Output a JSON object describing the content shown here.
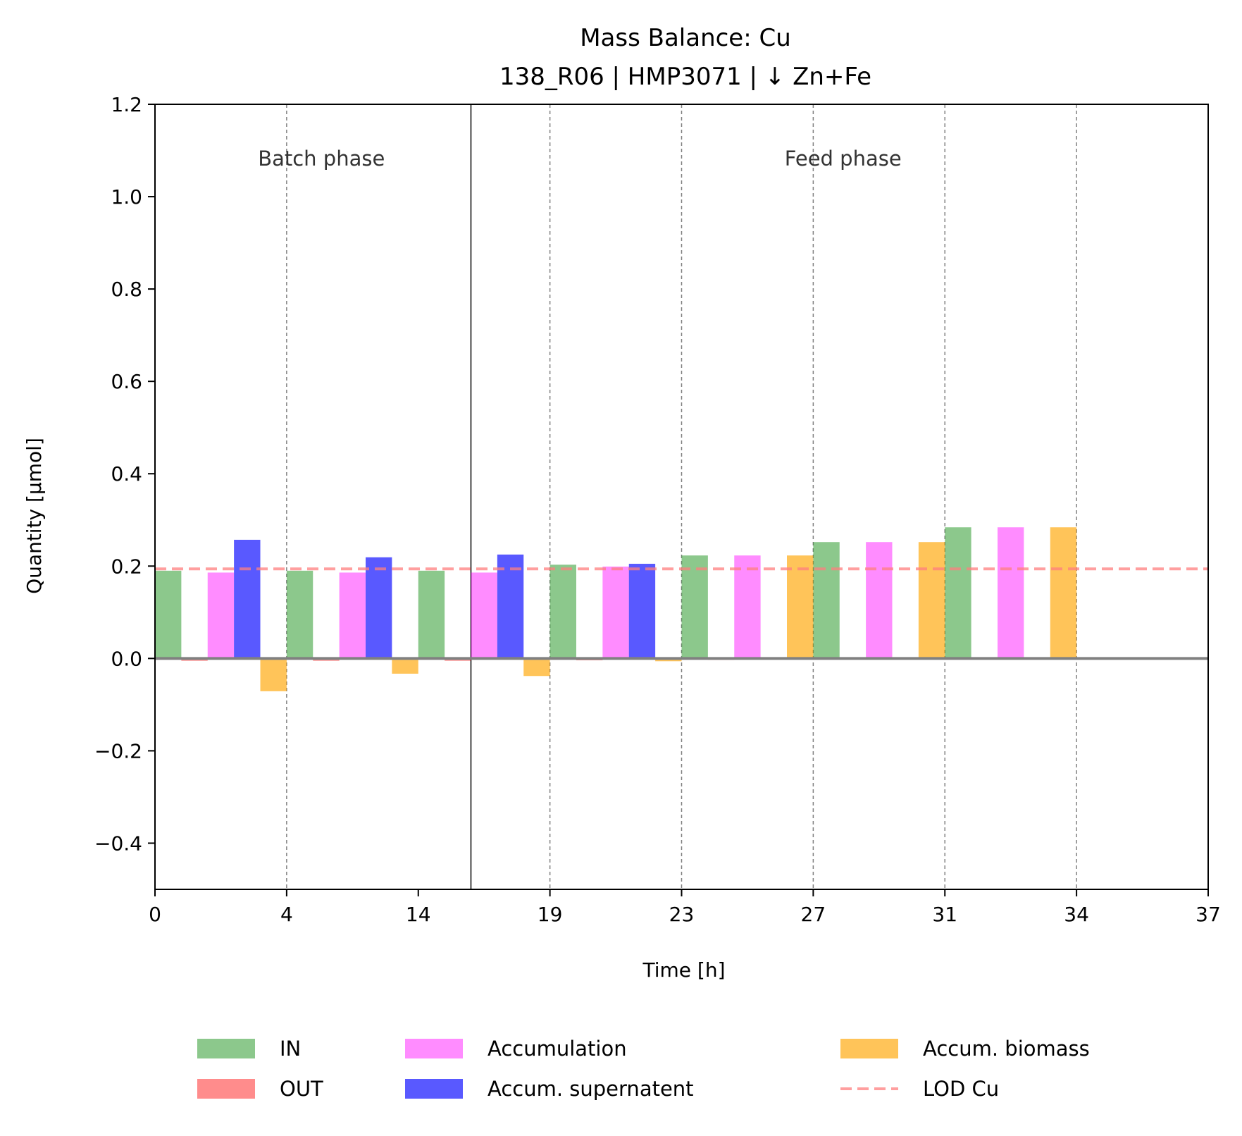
{
  "chart_data": {
    "type": "bar",
    "title": "Mass Balance: Cu",
    "subtitle": "138_R06  |  HMP3071  |  ↓ Zn+Fe",
    "xlabel": "Time [h]",
    "ylabel": "Quantity [µmol]",
    "ylim": [
      -0.5,
      1.2
    ],
    "yticks": [
      -0.4,
      -0.2,
      0.0,
      0.2,
      0.4,
      0.6,
      0.8,
      1.0,
      1.2
    ],
    "ytick_labels": [
      "−0.4",
      "−0.2",
      "0.0",
      "0.2",
      "0.4",
      "0.6",
      "0.8",
      "1.0",
      "1.2"
    ],
    "xtick_labels": [
      "0",
      "4",
      "14",
      "19",
      "23",
      "27",
      "31",
      "34",
      "37"
    ],
    "grid": "vertical dashed lines at interval boundaries",
    "phase_separator_after_interval": 2,
    "phase_labels": [
      "Batch phase",
      "Feed phase"
    ],
    "zero_line": true,
    "lod": {
      "name": "LOD Cu",
      "value": 0.194,
      "color": "#ff7f7f",
      "style": "dashed"
    },
    "legend_position": "bottom-center",
    "legend_order": [
      "IN",
      "OUT",
      "Accumulation",
      "Accum. supernatent",
      "Accum. biomass",
      "LOD Cu"
    ],
    "intervals": [
      "0–4",
      "4–14",
      "14–19",
      "19–23",
      "23–27",
      "27–31",
      "31–34",
      "34–37"
    ],
    "series": [
      {
        "name": "IN",
        "color": "#2e9a2e",
        "opacity": 0.55,
        "offset": 0,
        "values": [
          0.19,
          0.19,
          0.19,
          0.203,
          0.223,
          0.252,
          0.284,
          0
        ]
      },
      {
        "name": "OUT",
        "color": "#ff0000",
        "opacity": 0.45,
        "offset": 1,
        "values": [
          -0.005,
          -0.005,
          -0.005,
          -0.004,
          -0.003,
          0,
          0,
          0
        ]
      },
      {
        "name": "Accumulation",
        "color": "#ff00ff",
        "opacity": 0.45,
        "offset": 2,
        "values": [
          0.186,
          0.186,
          0.186,
          0.199,
          0.223,
          0.252,
          0.284,
          0
        ]
      },
      {
        "name": "Accum. supernatent",
        "color": "#0000ff",
        "opacity": 0.65,
        "offset": 3,
        "values": [
          0.257,
          0.219,
          0.225,
          0.205,
          0,
          0,
          0,
          0
        ]
      },
      {
        "name": "Accum. biomass",
        "color": "#ffa500",
        "opacity": 0.65,
        "offset": 4,
        "values": [
          -0.071,
          -0.033,
          -0.038,
          -0.006,
          0.223,
          0.252,
          0.284,
          0
        ]
      }
    ],
    "visible_segments": [
      [
        0,
        1,
        2,
        3,
        4
      ],
      [
        0,
        1,
        2,
        3,
        4
      ],
      [
        0,
        1,
        2,
        3,
        4
      ],
      [
        0,
        1,
        2,
        3,
        4
      ],
      [
        0,
        1,
        2,
        4
      ],
      [
        0,
        2,
        4
      ],
      [
        0,
        2,
        4
      ],
      []
    ]
  }
}
